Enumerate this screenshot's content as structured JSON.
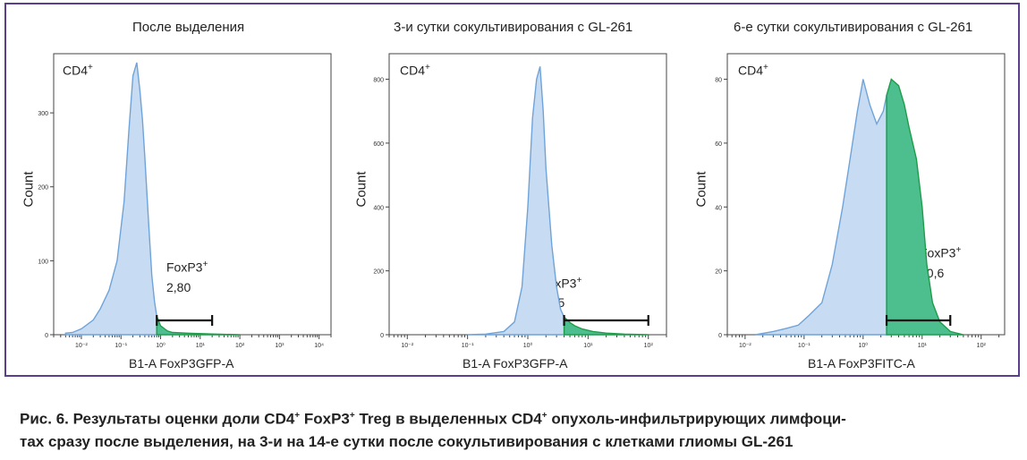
{
  "caption": {
    "line1_parts": [
      "Рис. 6. Результаты оценки доли CD4",
      "+",
      " FoxP3",
      "+",
      " Treg в выделенных CD4",
      "+",
      " опухоль-инфильтрирующих лимфоци-"
    ],
    "line2": "тах сразу после выделения, на 3-и на 14-е сутки после сокультивирования с клетками глиомы GL-261"
  },
  "chart_data": [
    {
      "type": "area",
      "title": "После выделения",
      "xlabel": "B1-A FoxP3GFP-A",
      "ylabel": "Count",
      "population_label": "CD4",
      "population_sup": "+",
      "gate_label": "FoxP3",
      "gate_sup": "+",
      "gate_value": "2,80",
      "x_scale": "log",
      "x_ticks": [
        0.01,
        0.1,
        1,
        10,
        100,
        1000,
        10000
      ],
      "x_tick_labels": [
        "10⁻²",
        "10⁻¹",
        "10⁰",
        "10¹",
        "10²",
        "10³",
        "10⁴"
      ],
      "xlim": [
        0.002,
        20000
      ],
      "y_ticks": [
        0,
        100,
        200,
        300
      ],
      "y_tick_labels": [
        "0",
        "100",
        "200",
        "300"
      ],
      "ylim": [
        0,
        380
      ],
      "gate_range": [
        0.8,
        20
      ],
      "series": [
        {
          "x": [
            0.004,
            0.006,
            0.01,
            0.02,
            0.03,
            0.05,
            0.08,
            0.12,
            0.16,
            0.2,
            0.25,
            0.3,
            0.35,
            0.4,
            0.5,
            0.6,
            0.7,
            0.8,
            1.0,
            1.5,
            2,
            5,
            20,
            100
          ],
          "y": [
            2,
            3,
            8,
            20,
            35,
            60,
            100,
            180,
            280,
            350,
            368,
            330,
            290,
            240,
            150,
            80,
            45,
            25,
            12,
            5,
            3,
            2,
            1,
            0
          ]
        }
      ]
    },
    {
      "type": "area",
      "title": "3-и сутки сокультивирования с GL-261",
      "xlabel": "B1-A FoxP3GFP-A",
      "ylabel": "Count",
      "population_label": "CD4",
      "population_sup": "+",
      "gate_label": "FoxP3",
      "gate_sup": "+",
      "gate_value": "5,85",
      "x_scale": "log",
      "x_ticks": [
        0.01,
        0.1,
        1,
        10,
        100
      ],
      "x_tick_labels": [
        "10⁻²",
        "10⁻¹",
        "10⁰",
        "10¹",
        "10²"
      ],
      "xlim": [
        0.005,
        200
      ],
      "y_ticks": [
        0,
        200,
        400,
        600,
        800
      ],
      "y_tick_labels": [
        "0",
        "200",
        "400",
        "600",
        "800"
      ],
      "ylim": [
        0,
        880
      ],
      "gate_range": [
        4,
        100
      ],
      "series": [
        {
          "x": [
            0.1,
            0.2,
            0.4,
            0.6,
            0.8,
            1.0,
            1.2,
            1.4,
            1.6,
            1.8,
            2.0,
            2.5,
            3,
            3.5,
            4,
            5,
            6,
            8,
            12,
            20,
            40,
            100
          ],
          "y": [
            0,
            2,
            10,
            40,
            150,
            400,
            680,
            800,
            840,
            700,
            520,
            280,
            150,
            80,
            55,
            38,
            28,
            18,
            10,
            5,
            2,
            0
          ]
        }
      ]
    },
    {
      "type": "area",
      "title": "6-е сутки сокультивирования с GL-261",
      "xlabel": "B1-A FoxP3FITC-A",
      "ylabel": "Count",
      "population_label": "CD4",
      "population_sup": "+",
      "gate_label": "FoxP3",
      "gate_sup": "+",
      "gate_value": "40,6",
      "x_scale": "log",
      "x_ticks": [
        0.01,
        0.1,
        1,
        10,
        100
      ],
      "x_tick_labels": [
        "10⁻²",
        "10⁻¹",
        "10⁰",
        "10¹",
        "10²"
      ],
      "xlim": [
        0.005,
        250
      ],
      "y_ticks": [
        0,
        20,
        40,
        60,
        80
      ],
      "y_tick_labels": [
        "0",
        "20",
        "40",
        "60",
        "80"
      ],
      "ylim": [
        0,
        88
      ],
      "gate_range": [
        2.5,
        30
      ],
      "series": [
        {
          "x": [
            0.015,
            0.03,
            0.05,
            0.08,
            0.12,
            0.2,
            0.3,
            0.45,
            0.6,
            0.8,
            1.0,
            1.3,
            1.7,
            2.2,
            2.5,
            3,
            4,
            5,
            6,
            8,
            10,
            12,
            15,
            20,
            30,
            50
          ],
          "y": [
            0,
            1,
            2,
            3,
            6,
            10,
            22,
            40,
            55,
            70,
            80,
            72,
            66,
            70,
            75,
            80,
            78,
            72,
            65,
            55,
            40,
            22,
            10,
            4,
            1,
            0
          ]
        }
      ]
    }
  ]
}
